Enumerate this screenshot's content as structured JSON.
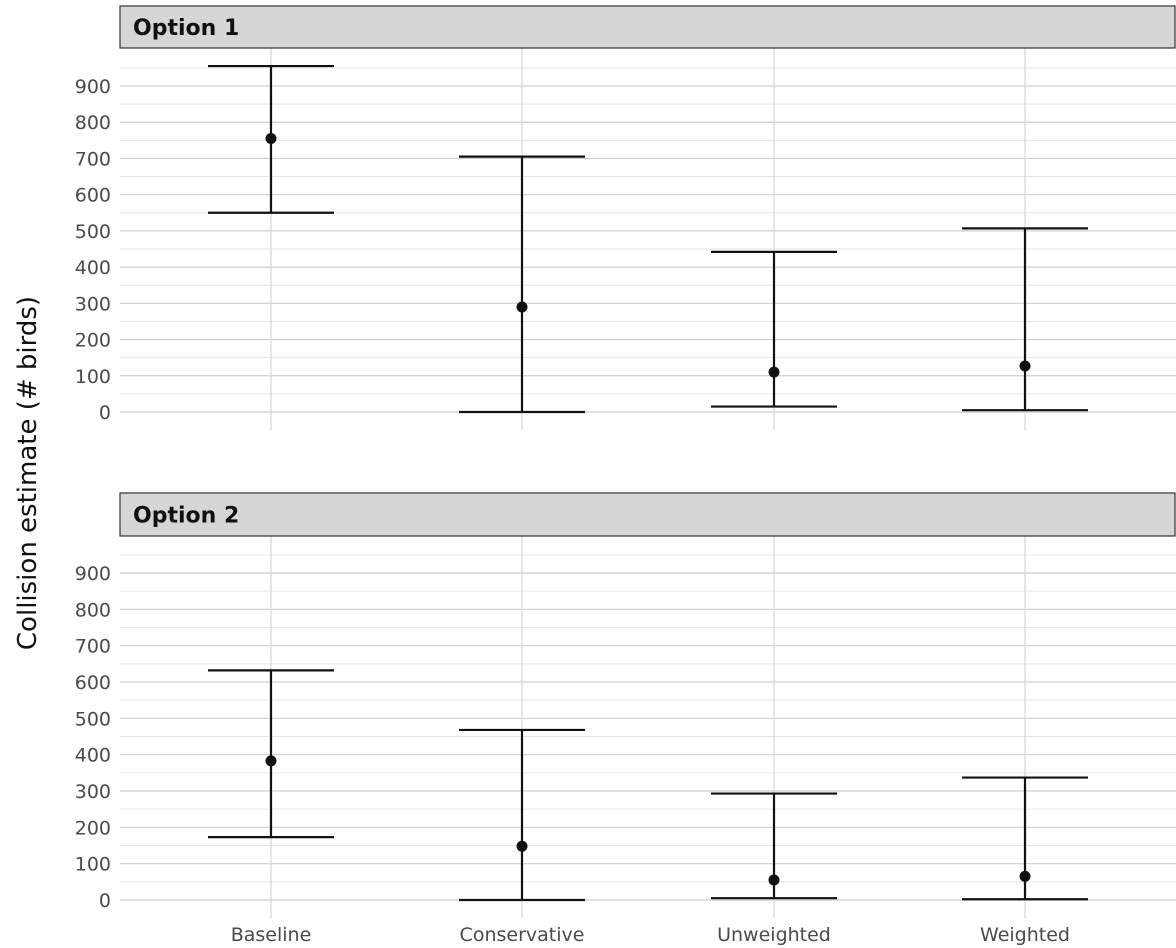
{
  "chart_data": {
    "type": "scatter",
    "ylabel": "Collision estimate (# birds)",
    "xlabel": "",
    "categories": [
      "Baseline",
      "Conservative",
      "Unweighted",
      "Weighted"
    ],
    "yticks": [
      "0",
      "100",
      "200",
      "300",
      "400",
      "500",
      "600",
      "700",
      "800",
      "900"
    ],
    "ylim": [
      -45,
      1000
    ],
    "panels": [
      {
        "title": "Option 1",
        "estimates": [
          755,
          290,
          110,
          127
        ],
        "lower": [
          550,
          0,
          15,
          5
        ],
        "upper": [
          955,
          705,
          442,
          507
        ]
      },
      {
        "title": "Option 2",
        "estimates": [
          383,
          148,
          55,
          65
        ],
        "lower": [
          173,
          0,
          5,
          2
        ],
        "upper": [
          632,
          468,
          293,
          337
        ]
      }
    ],
    "grid": true,
    "legend": "none"
  }
}
